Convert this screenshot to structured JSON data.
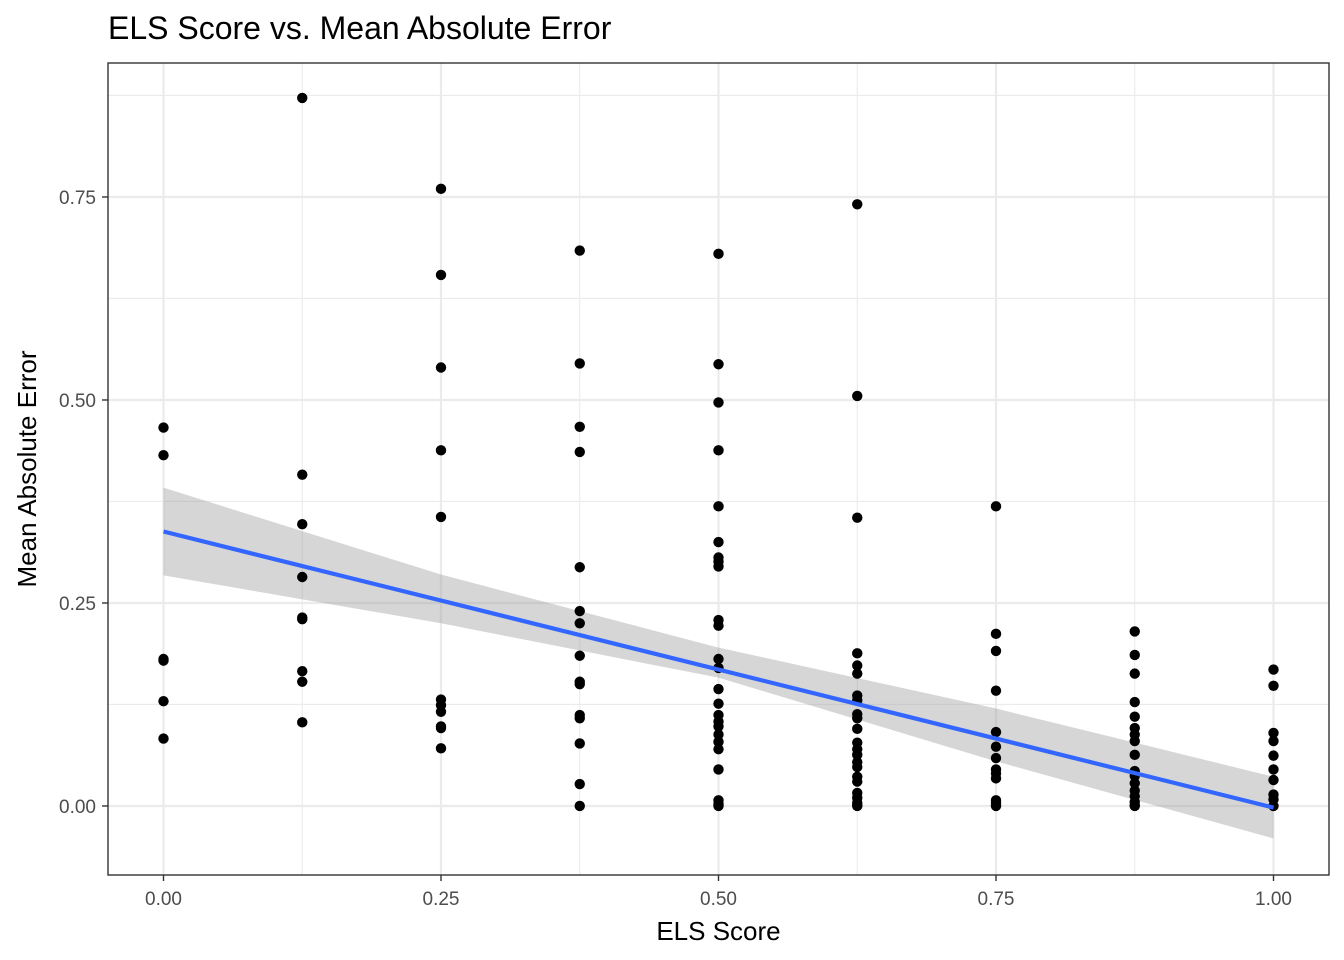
{
  "chart_data": {
    "type": "scatter",
    "title": "ELS Score vs. Mean Absolute Error",
    "xlabel": "ELS Score",
    "ylabel": "Mean Absolute Error",
    "xlim": [
      -0.05,
      1.05
    ],
    "ylim": [
      -0.085,
      0.915
    ],
    "x_ticks": [
      {
        "value": 0.0,
        "label": "0.00"
      },
      {
        "value": 0.25,
        "label": "0.25"
      },
      {
        "value": 0.5,
        "label": "0.50"
      },
      {
        "value": 0.75,
        "label": "0.75"
      },
      {
        "value": 1.0,
        "label": "1.00"
      }
    ],
    "y_ticks": [
      {
        "value": 0.0,
        "label": "0.00"
      },
      {
        "value": 0.25,
        "label": "0.25"
      },
      {
        "value": 0.5,
        "label": "0.50"
      },
      {
        "value": 0.75,
        "label": "0.75"
      }
    ],
    "grid": true,
    "legend": "none",
    "point_color": "#000000",
    "line_color": "#3366ff",
    "band_color": "#999999",
    "points": [
      [
        0,
        0.466
      ],
      [
        0,
        0.432
      ],
      [
        0,
        0.181
      ],
      [
        0,
        0.179
      ],
      [
        0,
        0.129
      ],
      [
        0,
        0.083
      ],
      [
        0.125,
        0.872
      ],
      [
        0.125,
        0.408
      ],
      [
        0.125,
        0.347
      ],
      [
        0.125,
        0.282
      ],
      [
        0.125,
        0.232
      ],
      [
        0.125,
        0.23
      ],
      [
        0.125,
        0.166
      ],
      [
        0.125,
        0.153
      ],
      [
        0.125,
        0.103
      ],
      [
        0.25,
        0.76
      ],
      [
        0.25,
        0.654
      ],
      [
        0.25,
        0.54
      ],
      [
        0.25,
        0.438
      ],
      [
        0.25,
        0.356
      ],
      [
        0.25,
        0.131
      ],
      [
        0.25,
        0.124
      ],
      [
        0.25,
        0.116
      ],
      [
        0.25,
        0.098
      ],
      [
        0.25,
        0.096
      ],
      [
        0.25,
        0.071
      ],
      [
        0.375,
        0.684
      ],
      [
        0.375,
        0.545
      ],
      [
        0.375,
        0.467
      ],
      [
        0.375,
        0.436
      ],
      [
        0.375,
        0.294
      ],
      [
        0.375,
        0.24
      ],
      [
        0.375,
        0.225
      ],
      [
        0.375,
        0.185
      ],
      [
        0.375,
        0.153
      ],
      [
        0.375,
        0.15
      ],
      [
        0.375,
        0.112
      ],
      [
        0.375,
        0.108
      ],
      [
        0.375,
        0.077
      ],
      [
        0.375,
        0.027
      ],
      [
        0.375,
        0.0
      ],
      [
        0.5,
        0.68
      ],
      [
        0.5,
        0.544
      ],
      [
        0.5,
        0.497
      ],
      [
        0.5,
        0.438
      ],
      [
        0.5,
        0.369
      ],
      [
        0.5,
        0.325
      ],
      [
        0.5,
        0.306
      ],
      [
        0.5,
        0.301
      ],
      [
        0.5,
        0.295
      ],
      [
        0.5,
        0.229
      ],
      [
        0.5,
        0.222
      ],
      [
        0.5,
        0.181
      ],
      [
        0.5,
        0.17
      ],
      [
        0.5,
        0.144
      ],
      [
        0.5,
        0.126
      ],
      [
        0.5,
        0.112
      ],
      [
        0.5,
        0.104
      ],
      [
        0.5,
        0.098
      ],
      [
        0.5,
        0.088
      ],
      [
        0.5,
        0.079
      ],
      [
        0.5,
        0.07
      ],
      [
        0.5,
        0.045
      ],
      [
        0.5,
        0.007
      ],
      [
        0.5,
        0.003
      ],
      [
        0.5,
        0.001
      ],
      [
        0.5,
        0.0
      ],
      [
        0.625,
        0.741
      ],
      [
        0.625,
        0.505
      ],
      [
        0.625,
        0.355
      ],
      [
        0.625,
        0.188
      ],
      [
        0.625,
        0.173
      ],
      [
        0.625,
        0.163
      ],
      [
        0.625,
        0.136
      ],
      [
        0.625,
        0.13
      ],
      [
        0.625,
        0.113
      ],
      [
        0.625,
        0.108
      ],
      [
        0.625,
        0.095
      ],
      [
        0.625,
        0.078
      ],
      [
        0.625,
        0.07
      ],
      [
        0.625,
        0.063
      ],
      [
        0.625,
        0.054
      ],
      [
        0.625,
        0.048
      ],
      [
        0.625,
        0.036
      ],
      [
        0.625,
        0.03
      ],
      [
        0.625,
        0.016
      ],
      [
        0.625,
        0.01
      ],
      [
        0.625,
        0.004
      ],
      [
        0.625,
        0.001
      ],
      [
        0.625,
        0.0
      ],
      [
        0.75,
        0.369
      ],
      [
        0.75,
        0.212
      ],
      [
        0.75,
        0.191
      ],
      [
        0.75,
        0.142
      ],
      [
        0.75,
        0.091
      ],
      [
        0.75,
        0.073
      ],
      [
        0.75,
        0.059
      ],
      [
        0.75,
        0.045
      ],
      [
        0.75,
        0.04
      ],
      [
        0.75,
        0.034
      ],
      [
        0.75,
        0.007
      ],
      [
        0.75,
        0.004
      ],
      [
        0.75,
        0.001
      ],
      [
        0.75,
        0.0
      ],
      [
        0.875,
        0.215
      ],
      [
        0.875,
        0.186
      ],
      [
        0.875,
        0.163
      ],
      [
        0.875,
        0.128
      ],
      [
        0.875,
        0.11
      ],
      [
        0.875,
        0.096
      ],
      [
        0.875,
        0.088
      ],
      [
        0.875,
        0.08
      ],
      [
        0.875,
        0.063
      ],
      [
        0.875,
        0.043
      ],
      [
        0.875,
        0.037
      ],
      [
        0.875,
        0.028
      ],
      [
        0.875,
        0.019
      ],
      [
        0.875,
        0.012
      ],
      [
        0.875,
        0.005
      ],
      [
        0.875,
        0.001
      ],
      [
        0.875,
        0.0
      ],
      [
        1,
        0.168
      ],
      [
        1,
        0.148
      ],
      [
        1,
        0.09
      ],
      [
        1,
        0.08
      ],
      [
        1,
        0.062
      ],
      [
        1,
        0.045
      ],
      [
        1,
        0.032
      ],
      [
        1,
        0.014
      ],
      [
        1,
        0.008
      ],
      [
        1,
        0.0
      ]
    ],
    "trend_line": [
      [
        0,
        0.338
      ],
      [
        1,
        -0.002
      ]
    ],
    "confidence_band": {
      "x": [
        0,
        0.25,
        0.5,
        0.75,
        1
      ],
      "upper": [
        0.392,
        0.285,
        0.195,
        0.12,
        0.036
      ],
      "lower": [
        0.284,
        0.225,
        0.158,
        0.055,
        -0.04
      ]
    }
  }
}
